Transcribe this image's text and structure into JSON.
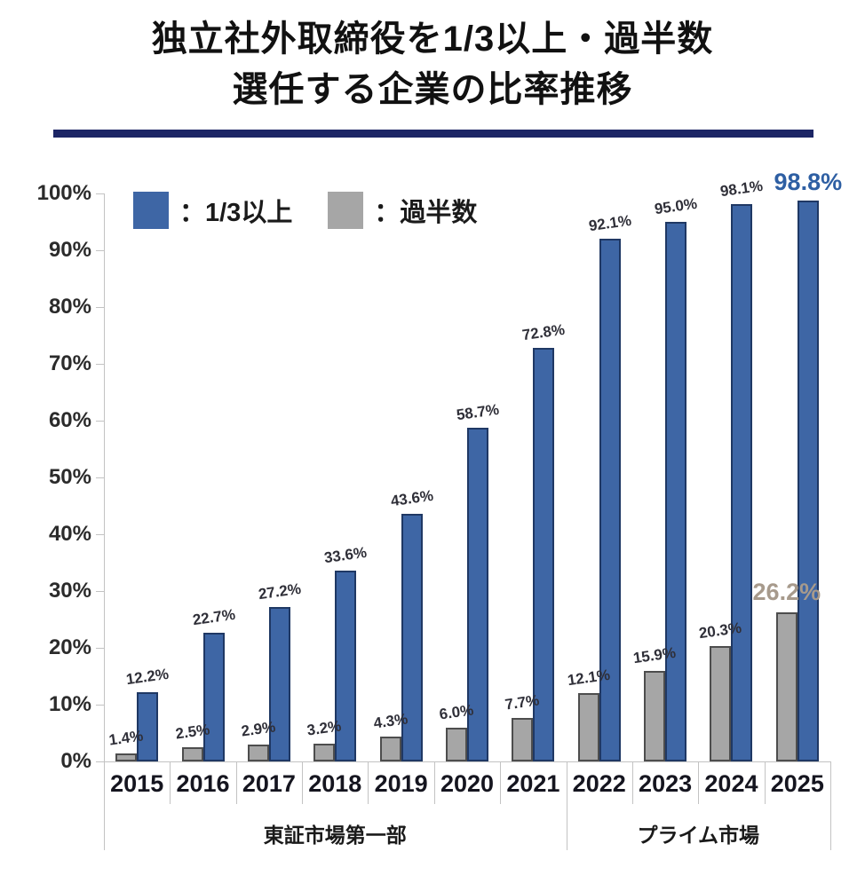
{
  "title": {
    "line1": "独立社外取締役を1/3以上・過半数",
    "line2": "選任する企業の比率推移"
  },
  "legend": {
    "items": [
      {
        "label": "：1/3以上",
        "color": "#3E66A5",
        "border": "#1F3864"
      },
      {
        "label": "：過半数",
        "color": "#A6A6A6",
        "border": "#595959"
      }
    ]
  },
  "chart_data": {
    "type": "bar",
    "title": "独立社外取締役を1/3以上・過半数選任する企業の比率推移",
    "categories": [
      "2015",
      "2016",
      "2017",
      "2018",
      "2019",
      "2020",
      "2021",
      "2022",
      "2023",
      "2024",
      "2025"
    ],
    "series": [
      {
        "name": "1/3以上",
        "color": "#3E66A5",
        "border_color": "#1F3864",
        "values": [
          12.2,
          22.7,
          27.2,
          33.6,
          43.6,
          58.7,
          72.8,
          92.1,
          95.0,
          98.1,
          98.8
        ],
        "labels": [
          "12.2%",
          "22.7%",
          "27.2%",
          "33.6%",
          "43.6%",
          "58.7%",
          "72.8%",
          "92.1%",
          "95.0%",
          "98.1%",
          "98.8%"
        ]
      },
      {
        "name": "過半数",
        "color": "#A6A6A6",
        "border_color": "#4d4d4d",
        "values": [
          1.4,
          2.5,
          2.9,
          3.2,
          4.3,
          6.0,
          7.7,
          12.1,
          15.9,
          20.3,
          26.2
        ],
        "labels": [
          "1.4%",
          "2.5%",
          "2.9%",
          "3.2%",
          "4.3%",
          "6.0%",
          "7.7%",
          "12.1%",
          "15.9%",
          "20.3%",
          "26.2%"
        ]
      }
    ],
    "y_ticks": [
      "100%",
      "90%",
      "80%",
      "70%",
      "60%",
      "50%",
      "40%",
      "30%",
      "20%",
      "10%",
      "0%"
    ],
    "ylim": [
      0,
      100
    ],
    "grid": false,
    "legend_position": "top-left",
    "category_groups": [
      {
        "label": "東証市場第一部",
        "from": 0,
        "to": 6
      },
      {
        "label": "プライム市場",
        "from": 7,
        "to": 10
      }
    ],
    "emphasis": {
      "last_blue_label_color": "#2E5FA3",
      "last_gray_label_color": "#A79A8C"
    }
  }
}
